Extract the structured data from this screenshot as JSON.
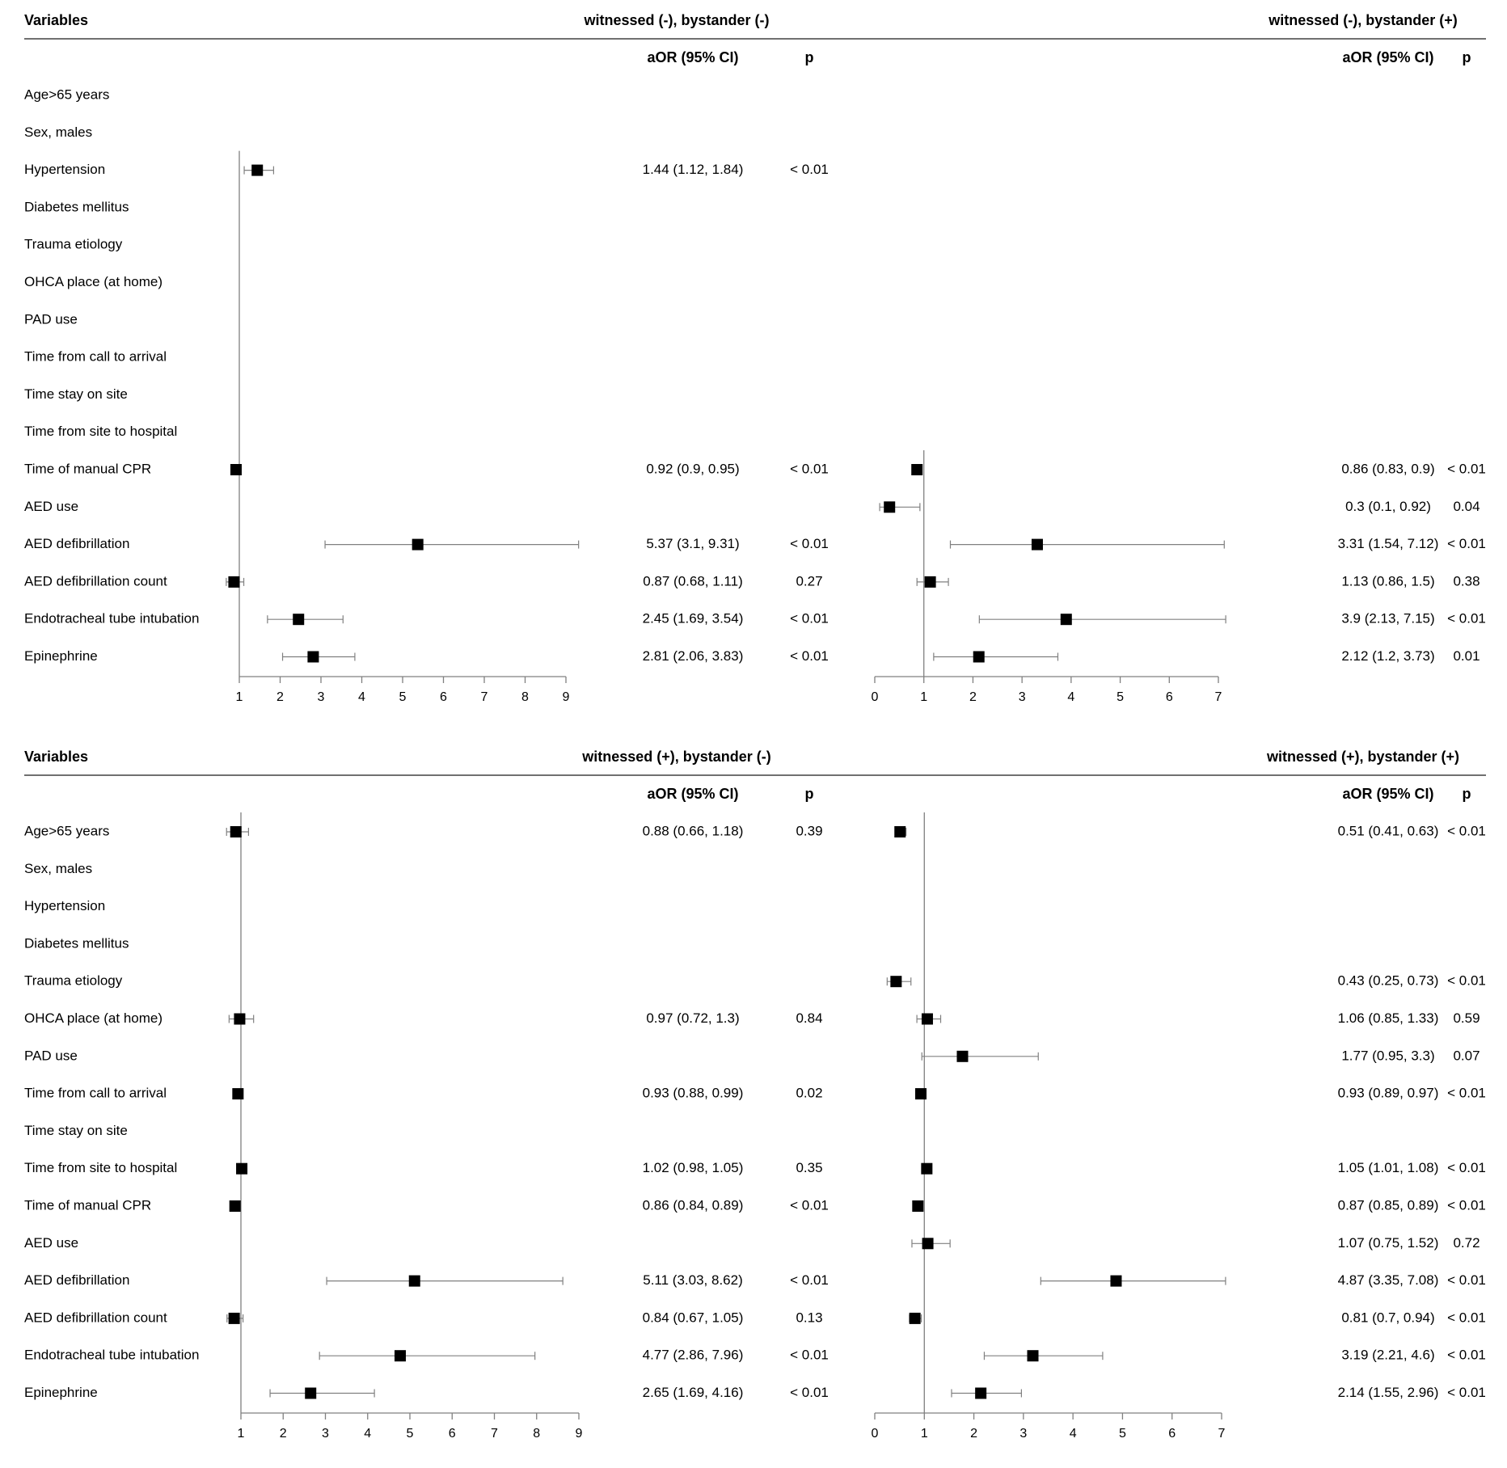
{
  "colors": {
    "marker": "#000000",
    "ci_line": "#808080",
    "axis": "#808080",
    "rule": "#404040",
    "text": "#000000"
  },
  "variables": [
    "Age>65 years",
    "Sex, males",
    "Hypertension",
    "Diabetes mellitus",
    "Trauma etiology",
    "OHCA place (at home)",
    "PAD use",
    "Time from call to arrival",
    "Time stay on site",
    "Time from site to hospital",
    "Time of manual CPR",
    "AED use",
    "AED defibrillation",
    "AED defibrillation count",
    "Endotracheal tube intubation",
    "Epinephrine"
  ],
  "panels": [
    {
      "variables_header": "Variables",
      "left_title": "witnessed (-), bystander (-)",
      "right_title": "witnessed (-), bystander (+)",
      "aor_header": "aOR (95% CI)",
      "p_header": "p"
    },
    {
      "variables_header": "Variables",
      "left_title": "witnessed (+), bystander (-)",
      "right_title": "witnessed (+), bystander (+)",
      "aor_header": "aOR (95% CI)",
      "p_header": "p"
    }
  ],
  "chart_data": [
    {
      "type": "forest",
      "title": "witnessed (-), bystander (-)",
      "xlim": [
        1,
        9
      ],
      "ticks": [
        1,
        2,
        3,
        4,
        5,
        6,
        7,
        8,
        9
      ],
      "reference": 1,
      "rows": [
        {
          "variable": "Hypertension",
          "or": 1.44,
          "lo": 1.12,
          "hi": 1.84,
          "label": "1.44 (1.12, 1.84)",
          "p": "< 0.01"
        },
        {
          "variable": "Time of manual CPR",
          "or": 0.92,
          "lo": 0.9,
          "hi": 0.95,
          "label": "0.92 (0.9, 0.95)",
          "p": "< 0.01"
        },
        {
          "variable": "AED defibrillation",
          "or": 5.37,
          "lo": 3.1,
          "hi": 9.31,
          "label": "5.37 (3.1, 9.31)",
          "p": "< 0.01"
        },
        {
          "variable": "AED defibrillation count",
          "or": 0.87,
          "lo": 0.68,
          "hi": 1.11,
          "label": "0.87 (0.68, 1.11)",
          "p": "0.27"
        },
        {
          "variable": "Endotracheal tube intubation",
          "or": 2.45,
          "lo": 1.69,
          "hi": 3.54,
          "label": "2.45 (1.69, 3.54)",
          "p": "< 0.01"
        },
        {
          "variable": "Epinephrine",
          "or": 2.81,
          "lo": 2.06,
          "hi": 3.83,
          "label": "2.81 (2.06, 3.83)",
          "p": "< 0.01"
        }
      ]
    },
    {
      "type": "forest",
      "title": "witnessed (-), bystander (+)",
      "xlim": [
        0,
        7
      ],
      "ticks": [
        0,
        1,
        2,
        3,
        4,
        5,
        6,
        7
      ],
      "reference": 1,
      "rows": [
        {
          "variable": "Time of manual CPR",
          "or": 0.86,
          "lo": 0.83,
          "hi": 0.9,
          "label": "0.86 (0.83, 0.9)",
          "p": "< 0.01"
        },
        {
          "variable": "AED use",
          "or": 0.3,
          "lo": 0.1,
          "hi": 0.92,
          "label": "0.3 (0.1, 0.92)",
          "p": "0.04"
        },
        {
          "variable": "AED defibrillation",
          "or": 3.31,
          "lo": 1.54,
          "hi": 7.12,
          "label": "3.31 (1.54, 7.12)",
          "p": "< 0.01"
        },
        {
          "variable": "AED defibrillation count",
          "or": 1.13,
          "lo": 0.86,
          "hi": 1.5,
          "label": "1.13 (0.86, 1.5)",
          "p": "0.38"
        },
        {
          "variable": "Endotracheal tube intubation",
          "or": 3.9,
          "lo": 2.13,
          "hi": 7.15,
          "label": "3.9 (2.13, 7.15)",
          "p": "< 0.01"
        },
        {
          "variable": "Epinephrine",
          "or": 2.12,
          "lo": 1.2,
          "hi": 3.73,
          "label": "2.12 (1.2, 3.73)",
          "p": "0.01"
        }
      ]
    },
    {
      "type": "forest",
      "title": "witnessed (+), bystander (-)",
      "xlim": [
        1,
        9
      ],
      "ticks": [
        1,
        2,
        3,
        4,
        5,
        6,
        7,
        8,
        9
      ],
      "reference": 1,
      "rows": [
        {
          "variable": "Age>65 years",
          "or": 0.88,
          "lo": 0.66,
          "hi": 1.18,
          "label": "0.88 (0.66, 1.18)",
          "p": "0.39"
        },
        {
          "variable": "OHCA place (at home)",
          "or": 0.97,
          "lo": 0.72,
          "hi": 1.3,
          "label": "0.97 (0.72, 1.3)",
          "p": "0.84"
        },
        {
          "variable": "Time from call to arrival",
          "or": 0.93,
          "lo": 0.88,
          "hi": 0.99,
          "label": "0.93 (0.88, 0.99)",
          "p": "0.02"
        },
        {
          "variable": "Time from site to hospital",
          "or": 1.02,
          "lo": 0.98,
          "hi": 1.05,
          "label": "1.02 (0.98, 1.05)",
          "p": "0.35"
        },
        {
          "variable": "Time of manual CPR",
          "or": 0.86,
          "lo": 0.84,
          "hi": 0.89,
          "label": "0.86 (0.84, 0.89)",
          "p": "< 0.01"
        },
        {
          "variable": "AED defibrillation",
          "or": 5.11,
          "lo": 3.03,
          "hi": 8.62,
          "label": "5.11 (3.03, 8.62)",
          "p": "< 0.01"
        },
        {
          "variable": "AED defibrillation count",
          "or": 0.84,
          "lo": 0.67,
          "hi": 1.05,
          "label": "0.84 (0.67, 1.05)",
          "p": "0.13"
        },
        {
          "variable": "Endotracheal tube intubation",
          "or": 4.77,
          "lo": 2.86,
          "hi": 7.96,
          "label": "4.77 (2.86, 7.96)",
          "p": "< 0.01"
        },
        {
          "variable": "Epinephrine",
          "or": 2.65,
          "lo": 1.69,
          "hi": 4.16,
          "label": "2.65 (1.69, 4.16)",
          "p": "< 0.01"
        }
      ]
    },
    {
      "type": "forest",
      "title": "witnessed (+), bystander (+)",
      "xlim": [
        0,
        7
      ],
      "ticks": [
        0,
        1,
        2,
        3,
        4,
        5,
        6,
        7
      ],
      "reference": 1,
      "rows": [
        {
          "variable": "Age>65 years",
          "or": 0.51,
          "lo": 0.41,
          "hi": 0.63,
          "label": "0.51 (0.41, 0.63)",
          "p": "< 0.01"
        },
        {
          "variable": "Trauma etiology",
          "or": 0.43,
          "lo": 0.25,
          "hi": 0.73,
          "label": "0.43 (0.25, 0.73)",
          "p": "< 0.01"
        },
        {
          "variable": "OHCA place (at home)",
          "or": 1.06,
          "lo": 0.85,
          "hi": 1.33,
          "label": "1.06 (0.85, 1.33)",
          "p": "0.59"
        },
        {
          "variable": "PAD use",
          "or": 1.77,
          "lo": 0.95,
          "hi": 3.3,
          "label": "1.77 (0.95, 3.3)",
          "p": "0.07"
        },
        {
          "variable": "Time from call to arrival",
          "or": 0.93,
          "lo": 0.89,
          "hi": 0.97,
          "label": "0.93 (0.89, 0.97)",
          "p": "< 0.01"
        },
        {
          "variable": "Time from site to hospital",
          "or": 1.05,
          "lo": 1.01,
          "hi": 1.08,
          "label": "1.05 (1.01, 1.08)",
          "p": "< 0.01"
        },
        {
          "variable": "Time of manual CPR",
          "or": 0.87,
          "lo": 0.85,
          "hi": 0.89,
          "label": "0.87 (0.85, 0.89)",
          "p": "< 0.01"
        },
        {
          "variable": "AED use",
          "or": 1.07,
          "lo": 0.75,
          "hi": 1.52,
          "label": "1.07 (0.75, 1.52)",
          "p": "0.72"
        },
        {
          "variable": "AED defibrillation",
          "or": 4.87,
          "lo": 3.35,
          "hi": 7.08,
          "label": "4.87 (3.35, 7.08)",
          "p": "< 0.01"
        },
        {
          "variable": "AED defibrillation count",
          "or": 0.81,
          "lo": 0.7,
          "hi": 0.94,
          "label": "0.81 (0.7, 0.94)",
          "p": "< 0.01"
        },
        {
          "variable": "Endotracheal tube intubation",
          "or": 3.19,
          "lo": 2.21,
          "hi": 4.6,
          "label": "3.19 (2.21, 4.6)",
          "p": "< 0.01"
        },
        {
          "variable": "Epinephrine",
          "or": 2.14,
          "lo": 1.55,
          "hi": 2.96,
          "label": "2.14 (1.55, 2.96)",
          "p": "< 0.01"
        }
      ]
    }
  ]
}
